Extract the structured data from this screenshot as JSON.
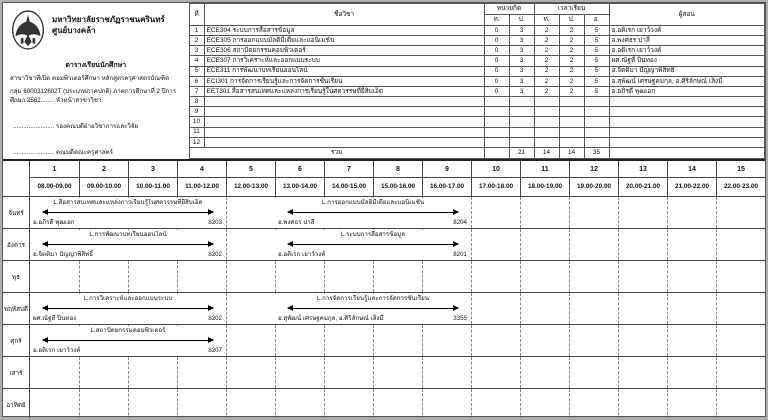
{
  "header": {
    "university_name": "มหาวิทยาลัยราชภัฏราชนครินทร์",
    "campus": "ศูนย์บางคล้า",
    "doc_title": "ตารางเรียนนักศึกษา",
    "program_line": "สาขาวิชาที่เปิด คอมพิวเตอร์ศึกษา  หลักสูตรครุศาสตรบัณฑิต",
    "group_line": "กลุ่ม 6000312602T (ประเภทภาคปกติ) ภาคการศึกษาที่ 2 ปีการศึกษา 2562",
    "seal_icon": "university-seal"
  },
  "signatures": {
    "dots": "........................",
    "labels": [
      "หัวหน้าสาขาวิชา",
      "รองคณบดีฝ่ายวิชาการและวิจัย",
      "คณบดีคณะครุศาสตร์"
    ]
  },
  "course_table": {
    "headers": {
      "no": "ที่",
      "course": "ชื่อวิชา",
      "credits": "หน่วยกิต",
      "time": "เวลาเรียน",
      "teacher": "ผู้สอน",
      "credit_sub": [
        "ท.",
        "ป."
      ],
      "time_sub": [
        "ท.",
        "ป.",
        "อ."
      ]
    },
    "rows": [
      {
        "no": "1",
        "course": "ECE304 ระบบการสื่อสารข้อมูล",
        "values": [
          "0",
          "3",
          "2",
          "2",
          "5"
        ],
        "teacher": "อ.อดิเรก เยาว์วงค์"
      },
      {
        "no": "2",
        "course": "ECE305 การออกแบบมัลติมีเดียและแอนิเมชัน",
        "values": [
          "0",
          "3",
          "2",
          "2",
          "5"
        ],
        "teacher": "อ.พงศธร ปาลี"
      },
      {
        "no": "3",
        "course": "ECE306 สถาปัตยกรรมคอมพิวเตอร์",
        "values": [
          "0",
          "3",
          "2",
          "2",
          "5"
        ],
        "teacher": "อ.อดิเรก เยาว์วงค์"
      },
      {
        "no": "4",
        "course": "ECE307 การวิเคราะห์และออกแบบระบบ",
        "values": [
          "0",
          "3",
          "2",
          "2",
          "5"
        ],
        "teacher": "ผศ.ณัฐที ปิ่นทอง"
      },
      {
        "no": "5",
        "course": "ECE311 การพัฒนาบทเรียนออนไลน์",
        "values": [
          "0",
          "3",
          "2",
          "2",
          "5"
        ],
        "teacher": "อ.จิตติมา ปัญญาพิสิทธิ์"
      },
      {
        "no": "6",
        "course": "ECI301 การจัดการเรียนรู้และการจัดการชั้นเรียน",
        "values": [
          "0",
          "3",
          "2",
          "2",
          "5"
        ],
        "teacher": "อ.สุพัฒน์ เศรษฐคมกุล, อ.ศิริลักษณ์ เส็งมี"
      },
      {
        "no": "7",
        "course": "EET301 สื่อสารสนเทศและแหล่งการเรียนรู้ในศตวรรษที่ยี่สิบเอ็ด",
        "values": [
          "0",
          "3",
          "2",
          "2",
          "5"
        ],
        "teacher": "อ.อภิรดี พุฒเอก"
      },
      {
        "no": "8",
        "course": "",
        "values": [
          "",
          "",
          "",
          "",
          ""
        ],
        "teacher": ""
      },
      {
        "no": "9",
        "course": "",
        "values": [
          "",
          "",
          "",
          "",
          ""
        ],
        "teacher": ""
      },
      {
        "no": "10",
        "course": "",
        "values": [
          "",
          "",
          "",
          "",
          ""
        ],
        "teacher": ""
      },
      {
        "no": "11",
        "course": "",
        "values": [
          "",
          "",
          "",
          "",
          ""
        ],
        "teacher": ""
      },
      {
        "no": "12",
        "course": "",
        "values": [
          "",
          "",
          "",
          "",
          ""
        ],
        "teacher": ""
      }
    ],
    "total_label": "รวม",
    "totals": [
      "",
      "21",
      "14",
      "14",
      "35"
    ],
    "totals_teacher": ""
  },
  "timetable": {
    "slots": [
      {
        "no": "1",
        "time": "08.00-09.00"
      },
      {
        "no": "2",
        "time": "09.00-10.00"
      },
      {
        "no": "3",
        "time": "10.00-11.00"
      },
      {
        "no": "4",
        "time": "11.00-12.00"
      },
      {
        "no": "5",
        "time": "12.00-13.00"
      },
      {
        "no": "6",
        "time": "13.00-14.00"
      },
      {
        "no": "7",
        "time": "14.00-15.00"
      },
      {
        "no": "8",
        "time": "15.00-16.00"
      },
      {
        "no": "9",
        "time": "16.00-17.00"
      },
      {
        "no": "10",
        "time": "17.00-18.00"
      },
      {
        "no": "11",
        "time": "18.00-19.00"
      },
      {
        "no": "12",
        "time": "19.00-20.00"
      },
      {
        "no": "13",
        "time": "20.00-21.00"
      },
      {
        "no": "14",
        "time": "21.00-22.00"
      },
      {
        "no": "15",
        "time": "22.00-23.00"
      }
    ],
    "days": [
      "จันทร์",
      "อังคาร",
      "พุธ",
      "พฤหัสบดี",
      "ศุกร์",
      "เสาร์",
      "อาทิตย์"
    ],
    "blocks": [
      {
        "day": 0,
        "start": 1,
        "span": 4,
        "title": "L.สื่อสารสนเทศและแหล่งการเรียนรู้ในศตวรรษที่ยี่สิบเอ็ด",
        "teacher": "อ.อภิรดี พุฒเอก",
        "room": "8203"
      },
      {
        "day": 0,
        "start": 6,
        "span": 4,
        "title": "L.การออกแบบมัลติมีเดียและแอนิเมชัน",
        "teacher": "อ.พงศธร ปาลี",
        "room": "8204"
      },
      {
        "day": 1,
        "start": 1,
        "span": 4,
        "title": "L.การพัฒนาบทเรียนออนไลน์",
        "teacher": "อ.จิตติมา ปัญญาพิสิทธิ์",
        "room": "8202"
      },
      {
        "day": 1,
        "start": 6,
        "span": 4,
        "title": "L.ระบบการสื่อสารข้อมูล",
        "teacher": "อ.อดิเรก เยาว์วงค์",
        "room": "8201"
      },
      {
        "day": 3,
        "start": 1,
        "span": 4,
        "title": "L.การวิเคราะห์และออกแบบระบบ",
        "teacher": "ผศ.ณัฐที ปิ่นทอง",
        "room": "8202"
      },
      {
        "day": 3,
        "start": 6,
        "span": 4,
        "title": "L.การจัดการเรียนรู้และการจัดการชั้นเรียน",
        "teacher": "อ.สุพัฒน์ เศรษฐคมกุล, อ.ศิริลักษณ์ เส็งมี",
        "room": "3355"
      },
      {
        "day": 4,
        "start": 1,
        "span": 4,
        "title": "L.สถาปัตยกรรมคอมพิวเตอร์",
        "teacher": "อ.อดิเรก เยาว์วงค์",
        "room": "8207"
      }
    ]
  },
  "colors": {
    "ink": "#111111",
    "border": "#444444",
    "page": "#ffffff",
    "backdrop": "#aeaeae"
  }
}
